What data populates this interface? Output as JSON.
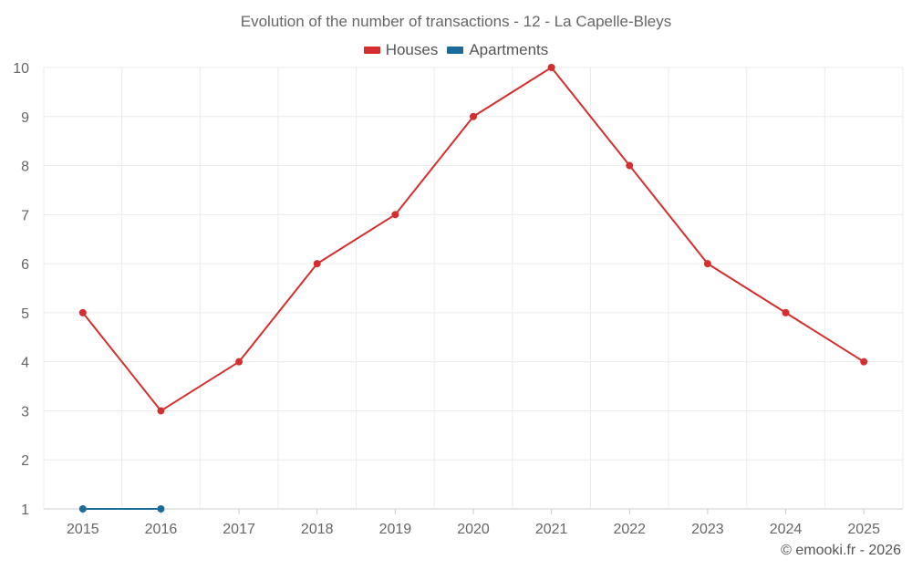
{
  "chart_data": {
    "type": "line",
    "title": "Evolution of the number of transactions - 12 - La Capelle-Bleys",
    "categories": [
      "2015",
      "2016",
      "2017",
      "2018",
      "2019",
      "2020",
      "2021",
      "2022",
      "2023",
      "2024",
      "2025"
    ],
    "series": [
      {
        "name": "Houses",
        "color": "#d32f2f",
        "values": [
          5,
          3,
          4,
          6,
          7,
          9,
          10,
          8,
          6,
          5,
          4
        ]
      },
      {
        "name": "Apartments",
        "color": "#1a6a9a",
        "values": [
          1,
          1,
          null,
          null,
          null,
          null,
          null,
          null,
          null,
          null,
          null
        ]
      }
    ],
    "ylim": [
      1,
      10
    ],
    "yticks": [
      1,
      2,
      3,
      4,
      5,
      6,
      7,
      8,
      9,
      10
    ],
    "grid": true,
    "legend_position": "top-center",
    "xlabel": "",
    "ylabel": ""
  },
  "footer": {
    "copyright": "© emooki.fr - 2026"
  }
}
